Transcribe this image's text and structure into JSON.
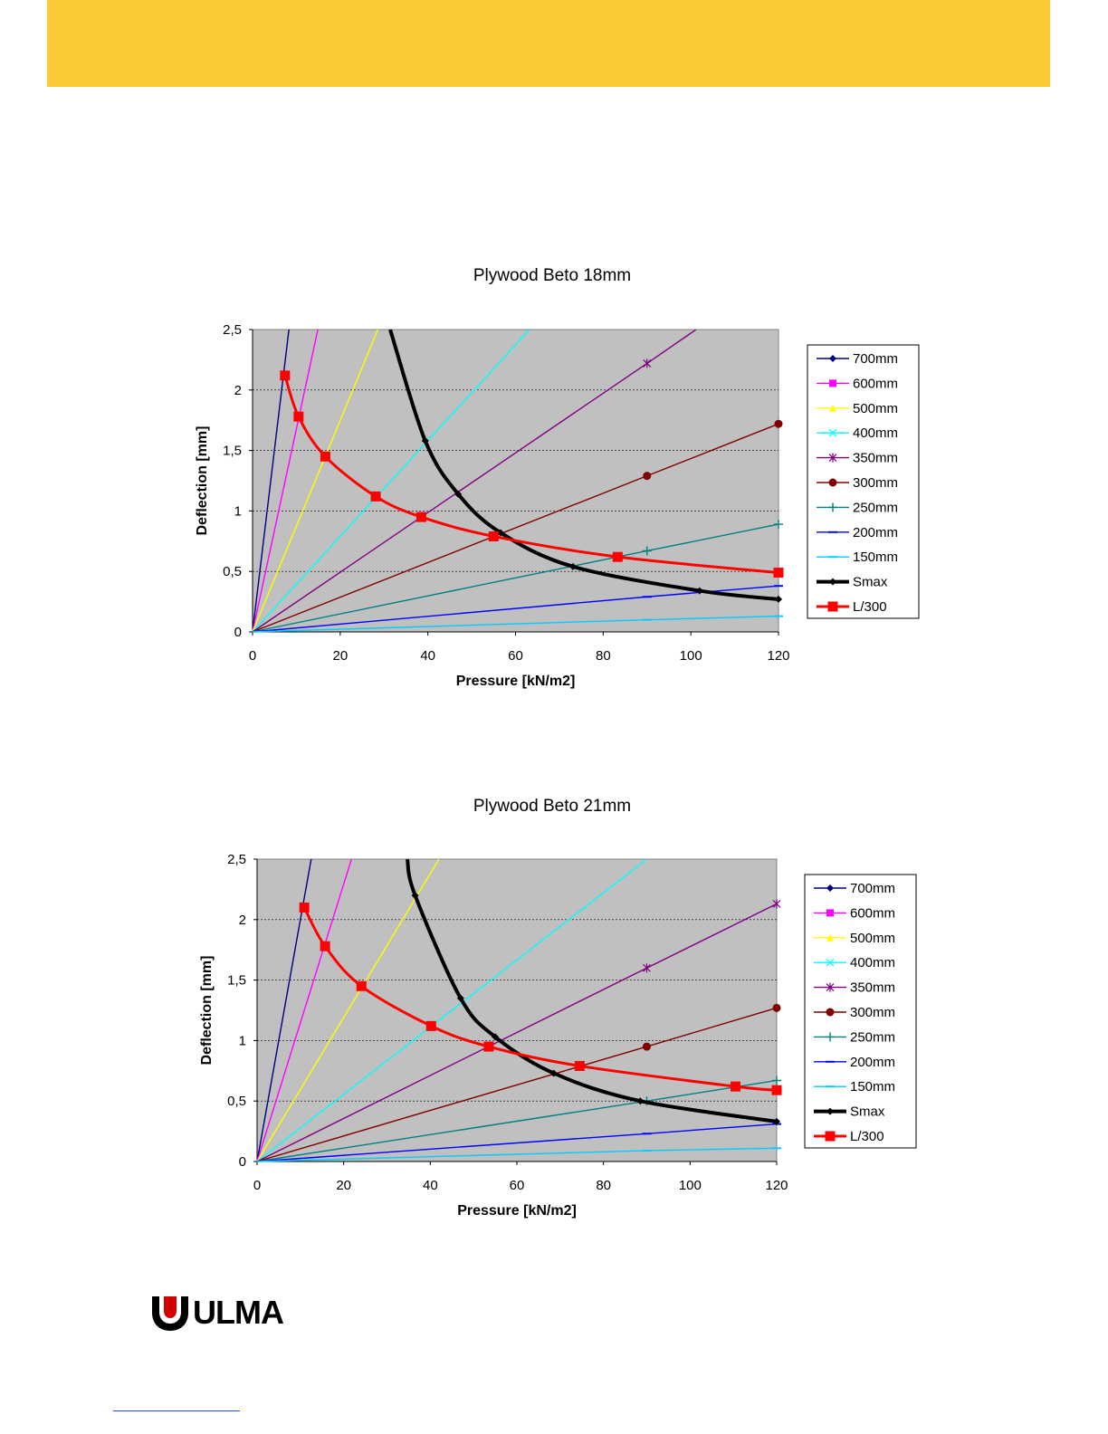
{
  "colors": {
    "band": "#fbc935",
    "plot_bg": "#c0c0c0",
    "700mm": "#000080",
    "600mm": "#ff00ff",
    "500mm": "#ffff00",
    "400mm": "#00ffff",
    "350mm": "#800080",
    "300mm": "#800000",
    "250mm": "#008080",
    "200mm": "#0000ff",
    "150mm": "#00ccff",
    "Smax": "#000000",
    "L300": "#ff0000"
  },
  "logo": {
    "text": "ULMA"
  },
  "chart_data": [
    {
      "type": "line",
      "title": "Plywood Beto 18mm",
      "xlabel": "Pressure [kN/m2]",
      "ylabel": "Deflection [mm]",
      "xlim": [
        0,
        120
      ],
      "ylim": [
        0,
        2.5
      ],
      "x_ticks": [
        "0",
        "20",
        "40",
        "60",
        "80",
        "100",
        "120"
      ],
      "y_ticks": [
        "0",
        "0,5",
        "1",
        "1,5",
        "2",
        "2,5"
      ],
      "legend": [
        "700mm",
        "600mm",
        "500mm",
        "400mm",
        "350mm",
        "300mm",
        "250mm",
        "200mm",
        "150mm",
        "Smax",
        "L/300"
      ],
      "legend_position": "right",
      "series": [
        {
          "name": "700mm",
          "x": [
            0,
            8.3
          ],
          "y": [
            0,
            2.5
          ]
        },
        {
          "name": "600mm",
          "x": [
            0,
            14.9
          ],
          "y": [
            0,
            2.5
          ]
        },
        {
          "name": "500mm",
          "x": [
            0,
            28.6
          ],
          "y": [
            0,
            2.5
          ]
        },
        {
          "name": "400mm",
          "x": [
            0,
            63.2
          ],
          "y": [
            0,
            2.5
          ]
        },
        {
          "name": "350mm",
          "x": [
            0,
            90,
            101.2
          ],
          "y": [
            0,
            2.22,
            2.5
          ]
        },
        {
          "name": "300mm",
          "x": [
            0,
            90,
            120
          ],
          "y": [
            0,
            1.29,
            1.72
          ]
        },
        {
          "name": "250mm",
          "x": [
            0,
            90,
            120
          ],
          "y": [
            0,
            0.67,
            0.89
          ]
        },
        {
          "name": "200mm",
          "x": [
            0,
            90,
            120
          ],
          "y": [
            0,
            0.29,
            0.38
          ]
        },
        {
          "name": "150mm",
          "x": [
            0,
            90,
            120
          ],
          "y": [
            0,
            0.1,
            0.13
          ]
        },
        {
          "name": "Smax",
          "x": [
            31.4,
            39.4,
            46.9,
            56.6,
            73.1,
            102,
            120
          ],
          "y": [
            2.5,
            1.58,
            1.14,
            0.82,
            0.54,
            0.34,
            0.27
          ]
        },
        {
          "name": "L/300",
          "x": [
            7.4,
            10.5,
            16.6,
            28.1,
            38.5,
            55,
            83.3,
            120
          ],
          "y": [
            2.12,
            1.78,
            1.45,
            1.12,
            0.95,
            0.79,
            0.62,
            0.49
          ]
        }
      ]
    },
    {
      "type": "line",
      "title": "Plywood Beto 21mm",
      "xlabel": "Pressure [kN/m2]",
      "ylabel": "Deflection [mm]",
      "xlim": [
        0,
        120
      ],
      "ylim": [
        0,
        2.5
      ],
      "x_ticks": [
        "0",
        "20",
        "40",
        "60",
        "80",
        "100",
        "120"
      ],
      "y_ticks": [
        "0",
        "0,5",
        "1",
        "1,5",
        "2",
        "2,5"
      ],
      "legend": [
        "700mm",
        "600mm",
        "500mm",
        "400mm",
        "350mm",
        "300mm",
        "250mm",
        "200mm",
        "150mm",
        "Smax",
        "L/300"
      ],
      "legend_position": "right",
      "series": [
        {
          "name": "700mm",
          "x": [
            0,
            12.5
          ],
          "y": [
            0,
            2.5
          ]
        },
        {
          "name": "600mm",
          "x": [
            0,
            21.8
          ],
          "y": [
            0,
            2.5
          ]
        },
        {
          "name": "500mm",
          "x": [
            0,
            42
          ],
          "y": [
            0,
            2.5
          ]
        },
        {
          "name": "400mm",
          "x": [
            0,
            90
          ],
          "y": [
            0,
            2.5
          ]
        },
        {
          "name": "350mm",
          "x": [
            0,
            90,
            120
          ],
          "y": [
            0,
            1.6,
            2.13
          ]
        },
        {
          "name": "300mm",
          "x": [
            0,
            90,
            120
          ],
          "y": [
            0,
            0.95,
            1.27
          ]
        },
        {
          "name": "250mm",
          "x": [
            0,
            90,
            120
          ],
          "y": [
            0,
            0.5,
            0.67
          ]
        },
        {
          "name": "200mm",
          "x": [
            0,
            90,
            120
          ],
          "y": [
            0,
            0.23,
            0.31
          ]
        },
        {
          "name": "150mm",
          "x": [
            0,
            90,
            120
          ],
          "y": [
            0,
            0.09,
            0.11
          ]
        },
        {
          "name": "Smax",
          "x": [
            34.7,
            36.5,
            47,
            55,
            68.5,
            88.5,
            120
          ],
          "y": [
            2.5,
            2.2,
            1.35,
            1.03,
            0.73,
            0.5,
            0.33
          ]
        },
        {
          "name": "L/300",
          "x": [
            10.9,
            15.7,
            24.1,
            40.2,
            53.5,
            74.5,
            110.5,
            120
          ],
          "y": [
            2.1,
            1.78,
            1.45,
            1.12,
            0.95,
            0.79,
            0.62,
            0.59
          ]
        }
      ]
    }
  ]
}
